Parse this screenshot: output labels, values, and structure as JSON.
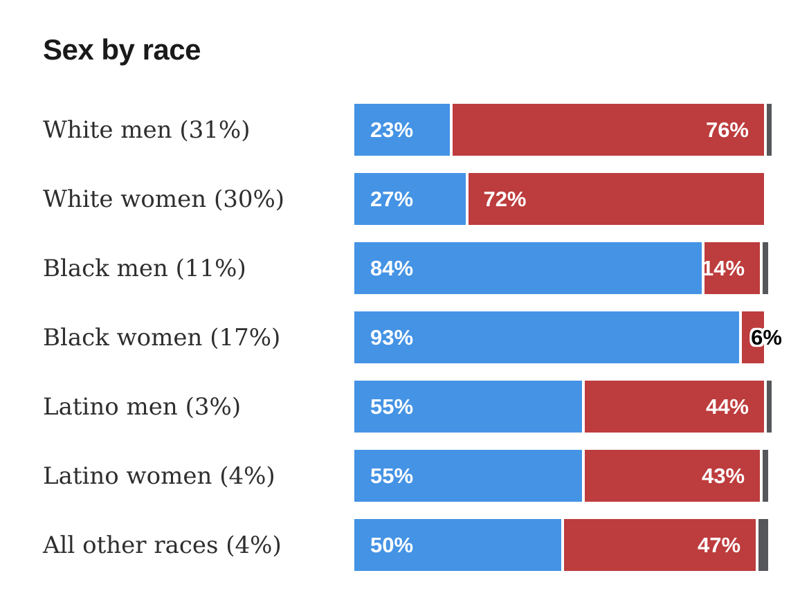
{
  "colors": {
    "blue": "#4493e5",
    "red": "#bd3c3d",
    "gray": "#56575b",
    "title_text": "#1a1a1a",
    "label_text": "#2e2e2e",
    "value_text": "#ffffff",
    "background": "#ffffff"
  },
  "chart_data": {
    "type": "bar",
    "orientation": "horizontal",
    "stacked": true,
    "title": "Sex by race",
    "categories": [
      "White men (31%)",
      "White women (30%)",
      "Black men (11%)",
      "Black women (17%)",
      "Latino men (3%)",
      "Latino women (4%)",
      "All other races (4%)"
    ],
    "series": [
      {
        "name": "blue",
        "color": "#4493e5",
        "values": [
          23,
          27,
          84,
          93,
          55,
          55,
          50
        ]
      },
      {
        "name": "red",
        "color": "#bd3c3d",
        "values": [
          76,
          72,
          14,
          6,
          44,
          43,
          47
        ]
      },
      {
        "name": "remainder-gray",
        "color": "#56575b",
        "values": [
          1,
          0,
          2,
          0,
          1,
          2,
          3
        ]
      }
    ],
    "xlim": [
      0,
      100
    ],
    "grid": false,
    "legend": "none",
    "value_label_format": "percent"
  },
  "rows": [
    {
      "label": "White men (31%)",
      "blue": 23,
      "red": 76,
      "gray": 1,
      "blue_label": "23%",
      "red_label": "76%",
      "red_label_align": "right",
      "red_label_style": "inside-white"
    },
    {
      "label": "White women (30%)",
      "blue": 27,
      "red": 72,
      "gray": 0,
      "blue_label": "27%",
      "red_label": "72%",
      "red_label_align": "left",
      "red_label_style": "inside-white"
    },
    {
      "label": "Black men (11%)",
      "blue": 84,
      "red": 14,
      "gray": 2,
      "blue_label": "84%",
      "red_label": "14%",
      "red_label_align": "right",
      "red_label_style": "inside-white"
    },
    {
      "label": "Black women (17%)",
      "blue": 93,
      "red": 6,
      "gray": 0,
      "blue_label": "93%",
      "red_label": "6%",
      "red_label_align": "right",
      "red_label_style": "outside-black"
    },
    {
      "label": "Latino men (3%)",
      "blue": 55,
      "red": 44,
      "gray": 1,
      "blue_label": "55%",
      "red_label": "44%",
      "red_label_align": "right",
      "red_label_style": "inside-white"
    },
    {
      "label": "Latino women (4%)",
      "blue": 55,
      "red": 43,
      "gray": 2,
      "blue_label": "55%",
      "red_label": "43%",
      "red_label_align": "right",
      "red_label_style": "inside-white"
    },
    {
      "label": "All other races (4%)",
      "blue": 50,
      "red": 47,
      "gray": 3,
      "blue_label": "50%",
      "red_label": "47%",
      "red_label_align": "right",
      "red_label_style": "inside-white"
    }
  ]
}
